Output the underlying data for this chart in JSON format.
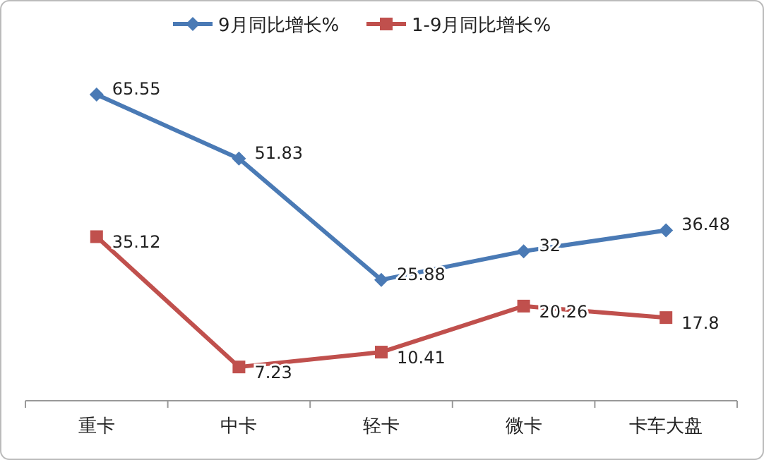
{
  "chart_data": {
    "type": "line",
    "categories": [
      "重卡",
      "中卡",
      "轻卡",
      "微卡",
      "卡车大盘"
    ],
    "series": [
      {
        "name": "9月同比增长%",
        "color": "#4a7ab5",
        "values": [
          65.55,
          51.83,
          25.88,
          32,
          36.48
        ],
        "marker": "diamond"
      },
      {
        "name": "1-9月同比增长%",
        "color": "#c0504d",
        "values": [
          35.12,
          7.23,
          10.41,
          20.26,
          17.8
        ],
        "marker": "square"
      }
    ],
    "data_labels": true,
    "legend": "top",
    "line_style": "solid"
  }
}
